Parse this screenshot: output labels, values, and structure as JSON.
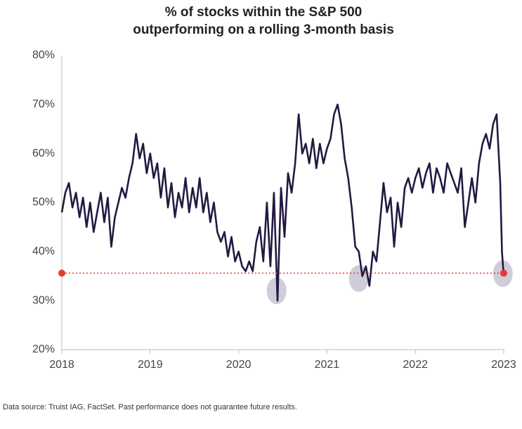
{
  "chart_data": {
    "type": "line",
    "title": [
      "% of stocks within the S&P 500",
      "outperforming on a rolling 3-month basis"
    ],
    "source": "Data source: Truist IAG, FactSet. Past performance does not guarantee future results.",
    "x": [
      2018.0,
      2018.04,
      2018.08,
      2018.12,
      2018.16,
      2018.2,
      2018.24,
      2018.28,
      2018.32,
      2018.36,
      2018.4,
      2018.44,
      2018.48,
      2018.52,
      2018.56,
      2018.6,
      2018.64,
      2018.68,
      2018.72,
      2018.76,
      2018.8,
      2018.84,
      2018.88,
      2018.92,
      2018.96,
      2019.0,
      2019.04,
      2019.08,
      2019.12,
      2019.16,
      2019.2,
      2019.24,
      2019.28,
      2019.32,
      2019.36,
      2019.4,
      2019.44,
      2019.48,
      2019.52,
      2019.56,
      2019.6,
      2019.64,
      2019.68,
      2019.72,
      2019.76,
      2019.8,
      2019.84,
      2019.88,
      2019.92,
      2019.96,
      2020.0,
      2020.04,
      2020.08,
      2020.12,
      2020.16,
      2020.2,
      2020.24,
      2020.28,
      2020.32,
      2020.36,
      2020.4,
      2020.44,
      2020.48,
      2020.52,
      2020.56,
      2020.6,
      2020.64,
      2020.68,
      2020.72,
      2020.76,
      2020.8,
      2020.84,
      2020.88,
      2020.92,
      2020.96,
      2021.0,
      2021.04,
      2021.08,
      2021.12,
      2021.16,
      2021.2,
      2021.24,
      2021.28,
      2021.32,
      2021.36,
      2021.4,
      2021.44,
      2021.48,
      2021.52,
      2021.56,
      2021.6,
      2021.64,
      2021.68,
      2021.72,
      2021.76,
      2021.8,
      2021.84,
      2021.88,
      2021.92,
      2021.96,
      2022.0,
      2022.04,
      2022.08,
      2022.12,
      2022.16,
      2022.2,
      2022.24,
      2022.28,
      2022.32,
      2022.36,
      2022.4,
      2022.44,
      2022.48,
      2022.52,
      2022.56,
      2022.6,
      2022.64,
      2022.68,
      2022.72,
      2022.76,
      2022.8,
      2022.84,
      2022.88,
      2022.92,
      2022.96,
      2022.98,
      2023.0
    ],
    "series": [
      {
        "color": "#231942",
        "values": [
          48,
          52,
          54,
          49,
          52,
          47,
          51,
          45,
          50,
          44,
          48,
          52,
          46,
          51,
          41,
          47,
          50,
          53,
          51,
          55,
          58,
          64,
          59,
          62,
          56,
          60,
          55,
          58,
          51,
          57,
          49,
          54,
          47,
          52,
          49,
          55,
          48,
          53,
          49,
          55,
          48,
          52,
          46,
          50,
          44,
          42,
          44,
          39,
          43,
          38,
          40,
          37,
          36,
          38,
          36,
          42,
          45,
          38,
          50,
          37,
          52,
          30,
          53,
          43,
          56,
          52,
          58,
          68,
          60,
          62,
          58,
          63,
          57,
          62,
          58,
          61,
          63,
          68,
          70,
          66,
          59,
          55,
          49,
          41,
          40,
          35,
          37,
          33,
          40,
          38,
          46,
          54,
          48,
          51,
          41,
          50,
          45,
          53,
          55,
          52,
          55,
          57,
          53,
          56,
          58,
          52,
          57,
          55,
          52,
          58,
          56,
          54,
          52,
          57,
          45,
          50,
          55,
          50,
          58,
          62,
          64,
          61,
          66,
          68,
          54,
          40,
          35
        ]
      }
    ],
    "reference_line": {
      "value": 35.6,
      "color": "#e53935"
    },
    "highlights": [
      {
        "x": 2020.43,
        "y": 32
      },
      {
        "x": 2021.36,
        "y": 34.5
      },
      {
        "x": 2022.99,
        "y": 35.5
      }
    ],
    "xlim": [
      2018,
      2023
    ],
    "xticks": [
      2018,
      2019,
      2020,
      2021,
      2022,
      2023
    ],
    "ylim": [
      20,
      80
    ],
    "yticks": [
      {
        "value": 20,
        "label": "20%"
      },
      {
        "value": 30,
        "label": "30%"
      },
      {
        "value": 40,
        "label": "40%"
      },
      {
        "value": 50,
        "label": "50%"
      },
      {
        "value": 60,
        "label": "60%"
      },
      {
        "value": 70,
        "label": "70%"
      },
      {
        "value": 80,
        "label": "80%"
      }
    ]
  }
}
